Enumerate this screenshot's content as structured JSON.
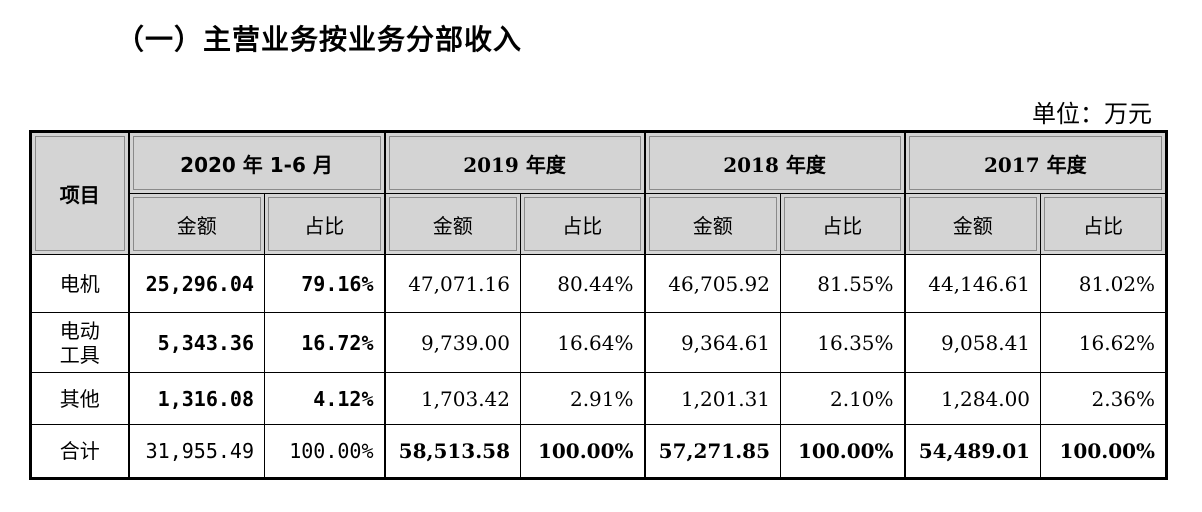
{
  "heading": "（一）主营业务按业务分部收入",
  "unit": "单位：万元",
  "table": {
    "item_header": "项目",
    "periods": [
      "2020 年 1-6 月",
      "2019 年度",
      "2018 年度",
      "2017 年度"
    ],
    "sub_amount": "金额",
    "sub_ratio": "占比",
    "rows": [
      {
        "name": "电机",
        "cells": [
          "25,296.04",
          "79.16%",
          "47,071.16",
          "80.44%",
          "46,705.92",
          "81.55%",
          "44,146.61",
          "81.02%"
        ]
      },
      {
        "name": "电动\n工具",
        "cells": [
          "5,343.36",
          "16.72%",
          "9,739.00",
          "16.64%",
          "9,364.61",
          "16.35%",
          "9,058.41",
          "16.62%"
        ]
      },
      {
        "name": "其他",
        "cells": [
          "1,316.08",
          "4.12%",
          "1,703.42",
          "2.91%",
          "1,201.31",
          "2.10%",
          "1,284.00",
          "2.36%"
        ]
      },
      {
        "name": "合计",
        "cells": [
          "31,955.49",
          "100.00%",
          "58,513.58",
          "100.00%",
          "57,271.85",
          "100.00%",
          "54,489.01",
          "100.00%"
        ]
      }
    ]
  }
}
